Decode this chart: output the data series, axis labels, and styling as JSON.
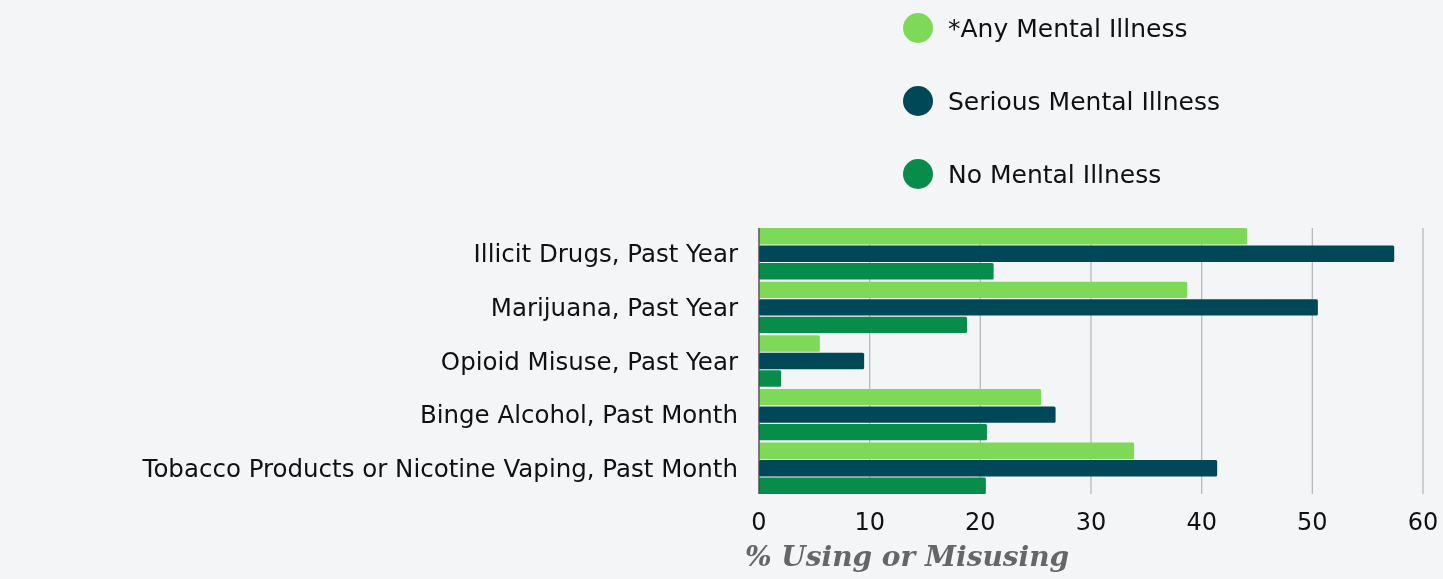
{
  "chart_data": {
    "type": "bar",
    "orientation": "horizontal",
    "xlabel": "% Using or Misusing",
    "categories": [
      "Illicit Drugs, Past Year",
      "Marijuana, Past Year",
      "Opioid Misuse, Past Year",
      "Binge Alcohol, Past Month",
      "Tobacco Products or Nicotine Vaping, Past Month"
    ],
    "series": [
      {
        "name": "*Any Mental Illness",
        "color": "#7fd958",
        "values": [
          44.1,
          38.7,
          5.5,
          25.5,
          33.9
        ]
      },
      {
        "name": "Serious Mental Illness",
        "color": "#004858",
        "values": [
          57.4,
          50.5,
          9.5,
          26.8,
          41.4
        ]
      },
      {
        "name": "No Mental Illness",
        "color": "#078c4c",
        "values": [
          21.2,
          18.8,
          2.0,
          20.6,
          20.5
        ]
      }
    ],
    "xlim": [
      0,
      60
    ],
    "xticks": [
      0,
      10,
      20,
      30,
      40,
      50,
      60
    ],
    "grid": "x",
    "legend": "top"
  }
}
